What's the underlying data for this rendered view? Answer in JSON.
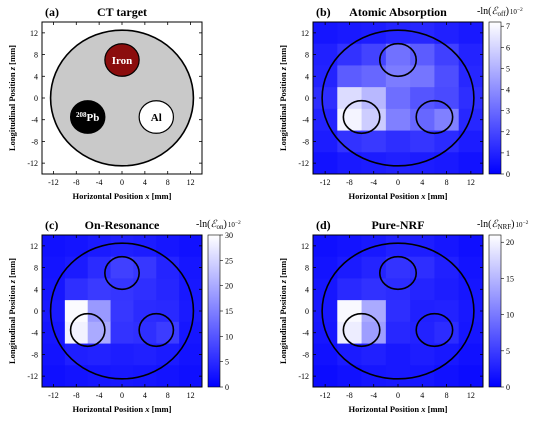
{
  "chart_data": [
    {
      "panel_letter": "(a)",
      "title": "CT target",
      "type": "diagram",
      "xlabel_parts": [
        "Horizontal Position ",
        "x",
        " [mm]"
      ],
      "ylabel_parts": [
        "Longitudinal Position ",
        "z",
        " [mm]"
      ],
      "xlim": [
        -14,
        14
      ],
      "ylim": [
        -14,
        14
      ],
      "xticks": [
        -12,
        -8,
        -4,
        0,
        4,
        8,
        12
      ],
      "yticks": [
        12,
        8,
        4,
        0,
        -4,
        -8,
        -12
      ],
      "target": {
        "center": [
          0,
          0
        ],
        "radius": 12.5,
        "fill": "#c9c9c9"
      },
      "materials": [
        {
          "name": "Iron",
          "sup": "",
          "center": [
            0,
            7
          ],
          "radius": 3,
          "fill": "#8b0d0d",
          "text_color": "#ffffff"
        },
        {
          "name": "Pb",
          "sup": "208",
          "center": [
            -6,
            -3.5
          ],
          "radius": 3,
          "fill": "#000000",
          "text_color": "#ffffff"
        },
        {
          "name": "Al",
          "sup": "",
          "center": [
            6,
            -3.5
          ],
          "radius": 3,
          "fill": "#ffffff",
          "text_color": "#000000"
        }
      ]
    },
    {
      "panel_letter": "(b)",
      "title": "Atomic Absorption",
      "type": "heatmap",
      "colorbar_label": {
        "prefix": "-ln(",
        "symbol": "ℰ",
        "sub": "off",
        "suffix": ")",
        "scale": "10",
        "scale_exp": "−2"
      },
      "xlabel_parts": [
        "Horizontal Position ",
        "x",
        " [mm]"
      ],
      "ylabel_parts": [
        "Longitudinal Position ",
        "z",
        " [mm]"
      ],
      "xlim": [
        -14,
        14
      ],
      "ylim": [
        -14,
        14
      ],
      "xticks": [
        -12,
        -8,
        -4,
        0,
        4,
        8,
        12
      ],
      "yticks": [
        12,
        8,
        4,
        0,
        -4,
        -8,
        -12
      ],
      "vmin": 0,
      "vmax": 7.2,
      "colorbar_ticks": [
        0,
        1,
        2,
        3,
        4,
        5,
        6,
        7
      ],
      "grid_x_edges": [
        -14,
        -10,
        -6,
        -2,
        2,
        6,
        10,
        14
      ],
      "grid_z_edges": [
        14,
        10,
        6,
        2,
        -2,
        -6,
        -10,
        -14
      ],
      "values": [
        [
          0.6,
          0.7,
          0.8,
          1.0,
          1.1,
          0.9,
          0.7
        ],
        [
          0.9,
          1.4,
          1.9,
          3.2,
          2.6,
          1.8,
          1.0
        ],
        [
          1.0,
          2.6,
          2.9,
          3.5,
          3.3,
          2.2,
          1.1
        ],
        [
          1.3,
          6.2,
          5.2,
          3.1,
          2.4,
          2.1,
          1.3
        ],
        [
          1.0,
          6.9,
          5.8,
          3.6,
          2.9,
          3.6,
          1.1
        ],
        [
          0.8,
          1.4,
          1.6,
          1.3,
          1.5,
          1.2,
          0.8
        ],
        [
          0.5,
          0.7,
          0.8,
          0.9,
          0.8,
          0.7,
          0.5
        ]
      ],
      "overlay": {
        "target_radius": 12.5,
        "materials": [
          [
            0,
            7,
            3
          ],
          [
            -6,
            -3.5,
            3
          ],
          [
            6,
            -3.5,
            3
          ]
        ]
      }
    },
    {
      "panel_letter": "(c)",
      "title": "On-Resonance",
      "type": "heatmap",
      "colorbar_label": {
        "prefix": "-ln(",
        "symbol": "ℰ",
        "sub": "on",
        "suffix": ")",
        "scale": "10",
        "scale_exp": "−2"
      },
      "xlabel_parts": [
        "Horizontal Position ",
        "x",
        " [mm]"
      ],
      "ylabel_parts": [
        "Longitudinal Position ",
        "z",
        " [mm]"
      ],
      "xlim": [
        -14,
        14
      ],
      "ylim": [
        -14,
        14
      ],
      "xticks": [
        -12,
        -8,
        -4,
        0,
        4,
        8,
        12
      ],
      "yticks": [
        12,
        8,
        4,
        0,
        -4,
        -8,
        -12
      ],
      "vmin": 0,
      "vmax": 30,
      "colorbar_ticks": [
        0,
        5,
        10,
        15,
        20,
        25,
        30
      ],
      "grid_x_edges": [
        -14,
        -10,
        -6,
        -2,
        2,
        6,
        10,
        14
      ],
      "grid_z_edges": [
        14,
        10,
        6,
        2,
        -2,
        -6,
        -10,
        -14
      ],
      "values": [
        [
          2.0,
          2.4,
          3.0,
          3.6,
          3.3,
          2.6,
          2.0
        ],
        [
          2.4,
          3.2,
          5.0,
          7.5,
          6.5,
          4.2,
          2.6
        ],
        [
          2.6,
          5.5,
          6.8,
          6.2,
          5.5,
          4.5,
          2.8
        ],
        [
          3.0,
          29.5,
          18.0,
          6.5,
          5.0,
          4.8,
          3.0
        ],
        [
          2.6,
          28.5,
          20.0,
          6.0,
          5.5,
          7.0,
          2.6
        ],
        [
          2.2,
          3.6,
          4.0,
          3.4,
          3.8,
          3.2,
          2.2
        ],
        [
          1.8,
          2.2,
          2.6,
          2.8,
          2.6,
          2.2,
          1.8
        ]
      ],
      "overlay": {
        "target_radius": 12.5,
        "materials": [
          [
            0,
            7,
            3
          ],
          [
            -6,
            -3.5,
            3
          ],
          [
            6,
            -3.5,
            3
          ]
        ]
      }
    },
    {
      "panel_letter": "(d)",
      "title": "Pure-NRF",
      "type": "heatmap",
      "colorbar_label": {
        "prefix": "-ln(",
        "symbol": "ℰ",
        "sub": "NRF",
        "suffix": ")",
        "scale": "10",
        "scale_exp": "−2"
      },
      "xlabel_parts": [
        "Horizontal Position ",
        "x",
        " [mm]"
      ],
      "ylabel_parts": [
        "Longitudinal Position ",
        "z",
        " [mm]"
      ],
      "xlim": [
        -14,
        14
      ],
      "ylim": [
        -14,
        14
      ],
      "xticks": [
        -12,
        -8,
        -4,
        0,
        4,
        8,
        12
      ],
      "yticks": [
        12,
        8,
        4,
        0,
        -4,
        -8,
        -12
      ],
      "vmin": 0,
      "vmax": 21,
      "colorbar_ticks": [
        0,
        5,
        10,
        15,
        20
      ],
      "grid_x_edges": [
        -14,
        -10,
        -6,
        -2,
        2,
        6,
        10,
        14
      ],
      "grid_z_edges": [
        14,
        10,
        6,
        2,
        -2,
        -6,
        -10,
        -14
      ],
      "values": [
        [
          1.2,
          1.6,
          2.0,
          2.6,
          2.4,
          1.8,
          1.2
        ],
        [
          1.6,
          2.2,
          3.0,
          4.2,
          3.8,
          2.6,
          1.6
        ],
        [
          1.8,
          3.4,
          4.0,
          3.6,
          3.0,
          2.4,
          1.8
        ],
        [
          2.0,
          20.5,
          14.0,
          3.8,
          2.6,
          2.8,
          2.0
        ],
        [
          1.8,
          19.5,
          13.0,
          3.2,
          2.8,
          3.6,
          1.8
        ],
        [
          1.4,
          2.2,
          2.6,
          2.0,
          2.4,
          2.0,
          1.4
        ],
        [
          1.0,
          1.4,
          1.8,
          2.0,
          1.8,
          1.4,
          1.0
        ]
      ],
      "overlay": {
        "target_radius": 12.5,
        "materials": [
          [
            0,
            7,
            3
          ],
          [
            -6,
            -3.5,
            3
          ],
          [
            6,
            -3.5,
            3
          ]
        ]
      }
    }
  ]
}
